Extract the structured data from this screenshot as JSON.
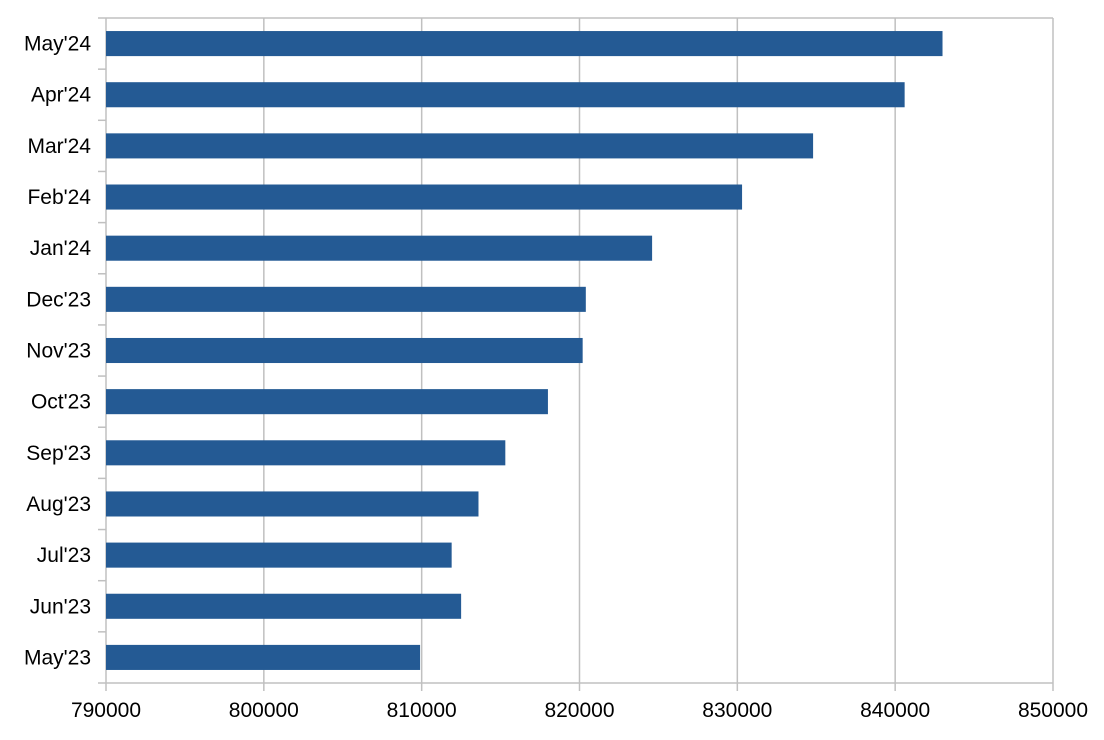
{
  "chart_data": {
    "type": "bar",
    "orientation": "horizontal",
    "title": "",
    "xlabel": "",
    "ylabel": "",
    "categories": [
      "May'23",
      "Jun'23",
      "Jul'23",
      "Aug'23",
      "Sep'23",
      "Oct'23",
      "Nov'23",
      "Dec'23",
      "Jan'24",
      "Feb'24",
      "Mar'24",
      "Apr'24",
      "May'24"
    ],
    "values": [
      809900,
      812500,
      811900,
      813600,
      815300,
      818000,
      820200,
      820400,
      824600,
      830300,
      834800,
      840600,
      843000
    ],
    "xlim": [
      790000,
      850000
    ],
    "xticks": [
      "790000",
      "800000",
      "810000",
      "820000",
      "830000",
      "840000",
      "850000"
    ],
    "grid": "vertical",
    "legend": "none",
    "bar_color": "#245a94",
    "grid_color": "#c0c0c0"
  }
}
